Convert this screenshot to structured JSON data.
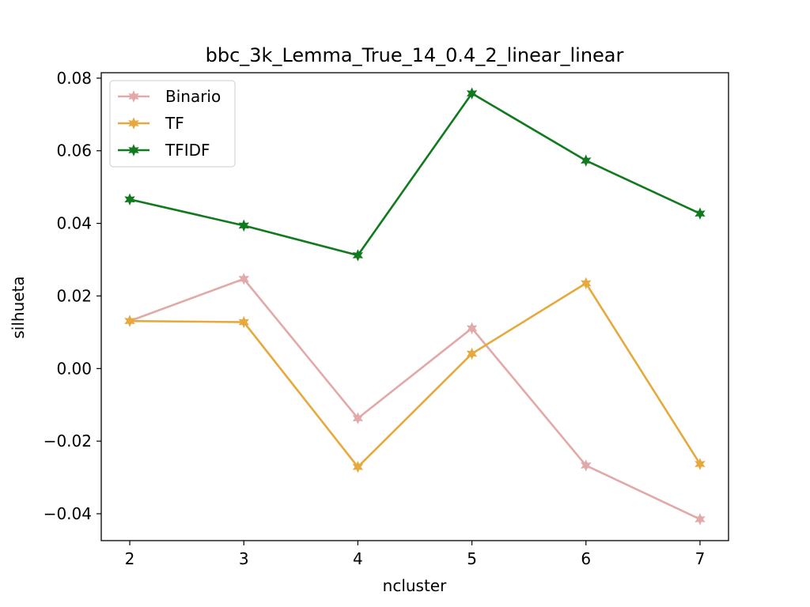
{
  "chart_data": {
    "type": "line",
    "title": "bbc_3k_Lemma_True_14_0.4_2_linear_linear",
    "xlabel": "ncluster",
    "ylabel": "silhueta",
    "x": [
      2,
      3,
      4,
      5,
      6,
      7
    ],
    "xticks": [
      "2",
      "3",
      "4",
      "5",
      "6",
      "7"
    ],
    "xlim": [
      1.75,
      7.25
    ],
    "ylim": [
      -0.0474,
      0.0815
    ],
    "yticks": [
      -0.04,
      -0.02,
      0.0,
      0.02,
      0.04,
      0.06,
      0.08
    ],
    "yticklabels": [
      "−0.04",
      "−0.02",
      "0.00",
      "0.02",
      "0.04",
      "0.06",
      "0.08"
    ],
    "grid": false,
    "legend_position": "upper-left",
    "series": [
      {
        "name": "Binario",
        "color": "#e2a9a9",
        "values": [
          0.0131,
          0.0247,
          -0.0137,
          0.0111,
          -0.0267,
          -0.0415
        ]
      },
      {
        "name": "TF",
        "color": "#e6a93e",
        "values": [
          0.0131,
          0.0128,
          -0.0271,
          0.0041,
          0.0235,
          -0.0263
        ]
      },
      {
        "name": "TFIDF",
        "color": "#117a1f",
        "values": [
          0.0466,
          0.0394,
          0.0312,
          0.0758,
          0.0573,
          0.0427
        ]
      }
    ]
  }
}
